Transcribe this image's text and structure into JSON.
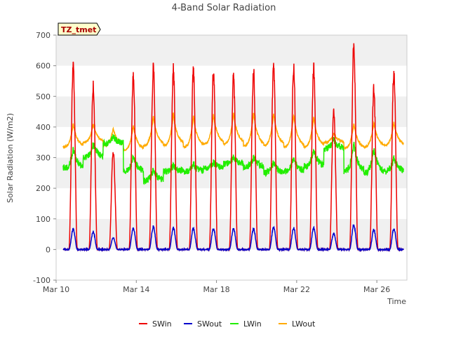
{
  "chart_data": {
    "type": "line",
    "title": "4-Band Solar Radiation",
    "xlabel": "Time",
    "ylabel": "Solar Radiation (W/m2)",
    "xlim": [
      0,
      17.5
    ],
    "ylim": [
      -100,
      700
    ],
    "y_ticks": [
      -100,
      0,
      100,
      200,
      300,
      400,
      500,
      600,
      700
    ],
    "x_ticks": [
      {
        "x": 0,
        "label": "Mar 10"
      },
      {
        "x": 4,
        "label": "Mar 14"
      },
      {
        "x": 8,
        "label": "Mar 18"
      },
      {
        "x": 12,
        "label": "Mar 22"
      },
      {
        "x": 16,
        "label": "Mar 26"
      }
    ],
    "grid": "horizontal bands",
    "legend": "bottom",
    "badge": "TZ_tmet",
    "start_day": 0.35,
    "days": 17,
    "series": [
      {
        "name": "SWin",
        "color": "#ee0000",
        "daily_peaks": [
          620,
          555,
          330,
          595,
          615,
          610,
          605,
          605,
          590,
          605,
          620,
          620,
          620,
          470,
          695,
          545,
          605
        ]
      },
      {
        "name": "SWout",
        "color": "#0000cc",
        "daily_peaks": [
          70,
          62,
          40,
          75,
          78,
          75,
          72,
          72,
          72,
          72,
          76,
          75,
          75,
          55,
          85,
          68,
          72
        ]
      },
      {
        "name": "LWin",
        "color": "#22ee00",
        "daily_base": [
          265,
          300,
          345,
          255,
          225,
          255,
          255,
          265,
          280,
          270,
          250,
          255,
          270,
          330,
          255,
          250,
          255
        ],
        "daily_peaks": [
          330,
          345,
          370,
          305,
          260,
          275,
          280,
          285,
          300,
          300,
          285,
          300,
          330,
          360,
          345,
          330,
          300
        ]
      },
      {
        "name": "LWout",
        "color": "#ffaa00",
        "daily_base": [
          335,
          350,
          340,
          325,
          340,
          340,
          335,
          345,
          345,
          340,
          340,
          335,
          335,
          350,
          330,
          335,
          340
        ],
        "daily_peaks": [
          410,
          410,
          395,
          405,
          435,
          445,
          435,
          440,
          445,
          445,
          445,
          440,
          435,
          380,
          410,
          415,
          415
        ]
      }
    ]
  }
}
